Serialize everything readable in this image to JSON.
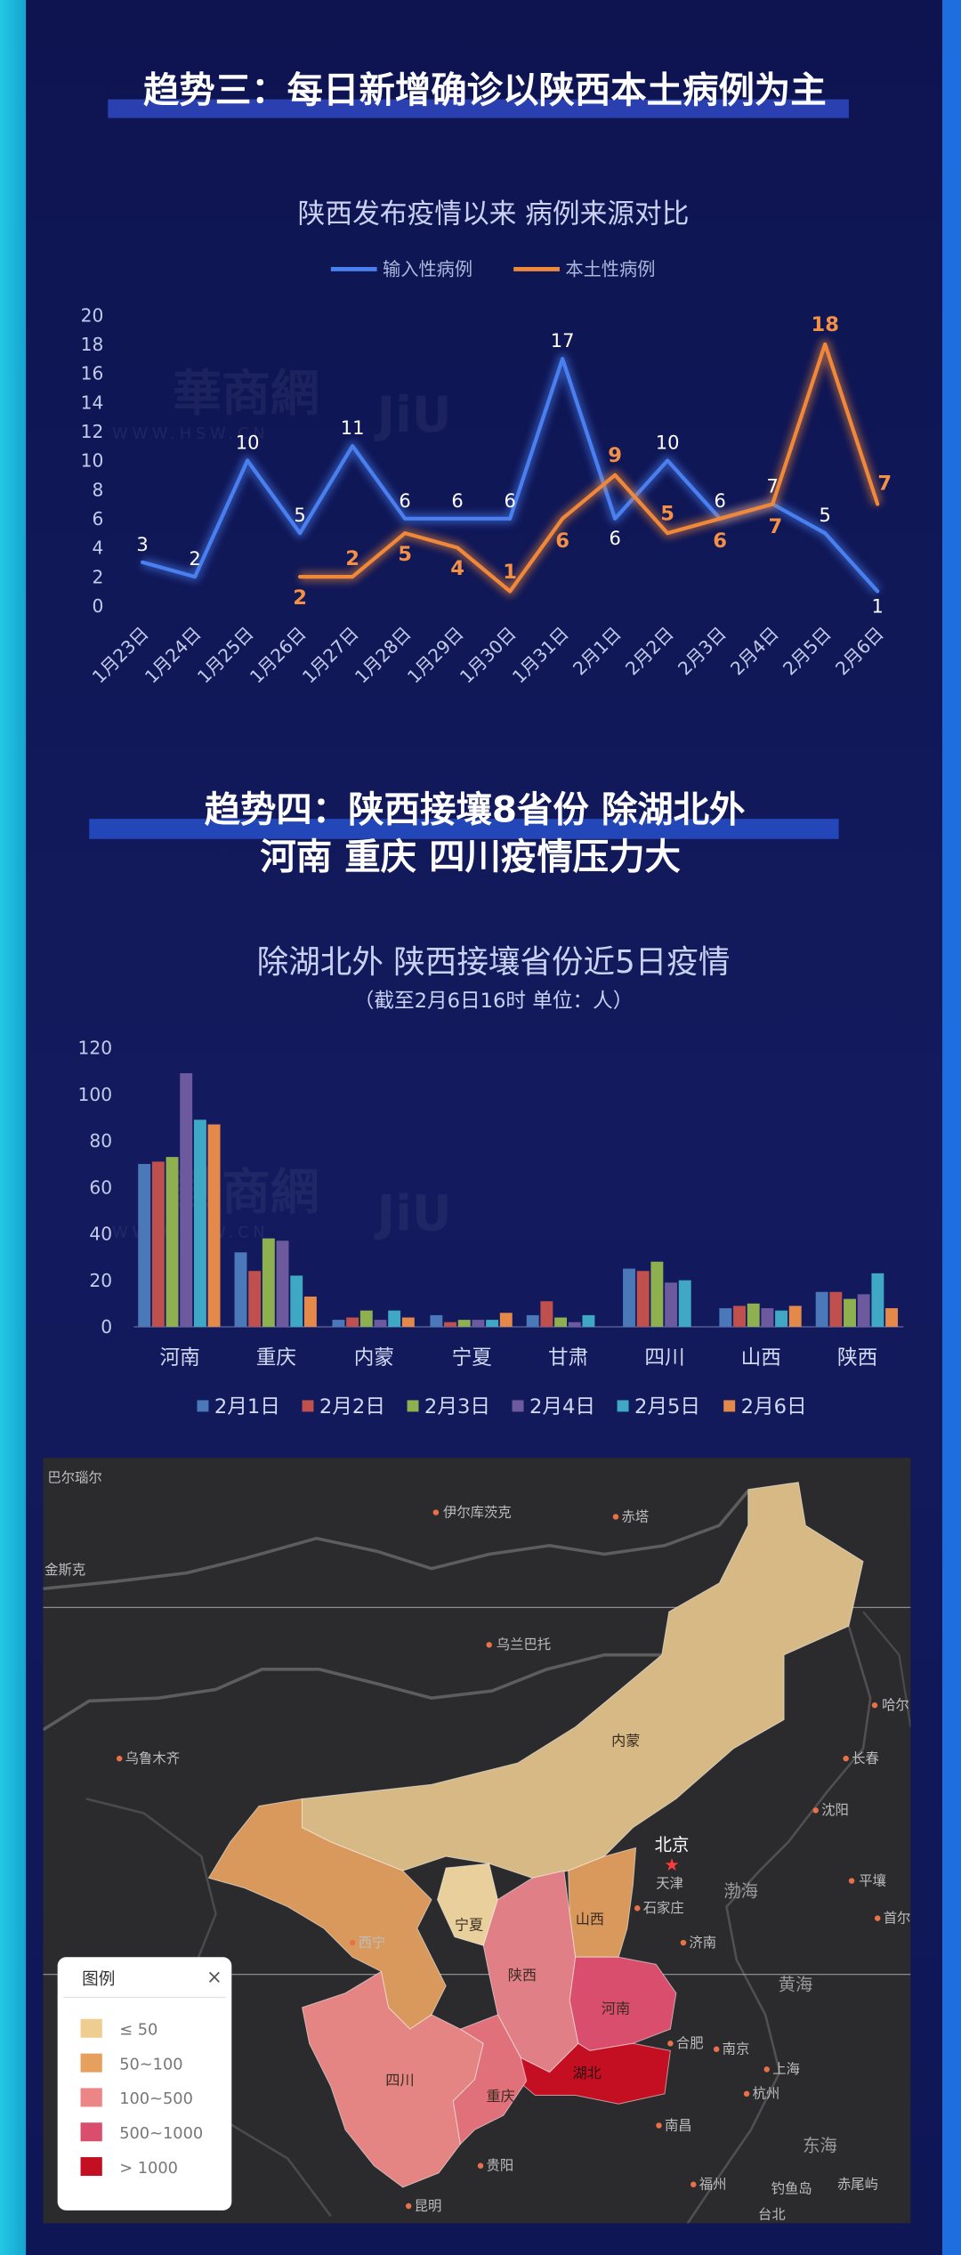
{
  "section3": {
    "title": "趋势三：每日新增确诊以陕西本土病例为主"
  },
  "section4": {
    "title_line1": "趋势四：陕西接壤8省份 除湖北外",
    "title_line2": "河南 重庆 四川疫情压力大"
  },
  "watermark": {
    "logo": "華商網",
    "url": "WWW.HSW.CN",
    "brand": "JiU"
  },
  "chart_data": [
    {
      "type": "line",
      "title": "陕西发布疫情以来 病例来源对比",
      "xlabel": "",
      "ylabel": "",
      "categories": [
        "1月23日",
        "1月24日",
        "1月25日",
        "1月26日",
        "1月27日",
        "1月28日",
        "1月29日",
        "1月30日",
        "1月31日",
        "2月1日",
        "2月2日",
        "2月3日",
        "2月4日",
        "2月5日",
        "2月6日"
      ],
      "series": [
        {
          "name": "输入性病例",
          "color": "#4a7ff0",
          "values": [
            3,
            2,
            10,
            5,
            11,
            6,
            6,
            6,
            17,
            6,
            10,
            6,
            7,
            5,
            1
          ]
        },
        {
          "name": "本土性病例",
          "color": "#f0883a",
          "values": [
            null,
            null,
            null,
            2,
            2,
            5,
            4,
            1,
            6,
            9,
            5,
            6,
            7,
            18,
            7
          ]
        }
      ],
      "ylim": [
        0,
        20
      ],
      "yticks": [
        0,
        2,
        4,
        6,
        8,
        10,
        12,
        14,
        16,
        18,
        20
      ],
      "grid": false,
      "legend": "top-center"
    },
    {
      "type": "bar",
      "title": "除湖北外 陕西接壤省份近5日疫情",
      "subtitle": "（截至2月6日16时  单位：人）",
      "xlabel": "",
      "ylabel": "",
      "categories": [
        "河南",
        "重庆",
        "内蒙",
        "宁夏",
        "甘肃",
        "四川",
        "山西",
        "陕西"
      ],
      "series": [
        {
          "name": "2月1日",
          "color": "#4a78b8",
          "values": [
            70,
            32,
            3,
            5,
            5,
            25,
            8,
            15
          ]
        },
        {
          "name": "2月2日",
          "color": "#c0504d",
          "values": [
            71,
            24,
            4,
            2,
            11,
            24,
            9,
            15
          ]
        },
        {
          "name": "2月3日",
          "color": "#8eb04e",
          "values": [
            73,
            38,
            7,
            3,
            4,
            28,
            10,
            12
          ]
        },
        {
          "name": "2月4日",
          "color": "#6d5a9e",
          "values": [
            109,
            37,
            3,
            3,
            2,
            19,
            8,
            14
          ]
        },
        {
          "name": "2月5日",
          "color": "#3fa8c4",
          "values": [
            89,
            22,
            7,
            3,
            5,
            20,
            7,
            23
          ]
        },
        {
          "name": "2月6日",
          "color": "#e5894a",
          "values": [
            87,
            13,
            4,
            6,
            0,
            0,
            9,
            8
          ]
        }
      ],
      "ylim": [
        0,
        120
      ],
      "yticks": [
        0,
        20,
        40,
        60,
        80,
        100,
        120
      ],
      "grid": false,
      "legend": "bottom"
    }
  ],
  "map": {
    "labels": [
      "巴尔瑙尔",
      "伊尔库茨克",
      "赤塔",
      "金斯克",
      "乌兰巴托",
      "乌鲁木齐",
      "内蒙",
      "哈尔",
      "长春",
      "沈阳",
      "北京",
      "天津",
      "渤海",
      "平壤",
      "首尔",
      "石家庄",
      "济南",
      "山西",
      "宁夏",
      "西宁",
      "陕西",
      "河南",
      "黄海",
      "合肥",
      "南京",
      "上海",
      "杭州",
      "湖北",
      "四川",
      "重庆",
      "南昌",
      "贵阳",
      "福州",
      "东海",
      "钓鱼岛",
      "赤尾屿",
      "台北",
      "昆明"
    ],
    "legend": {
      "title": "图例",
      "close": "×",
      "items": [
        {
          "label": "≤ 50",
          "color": "#efcd90"
        },
        {
          "label": "50~100",
          "color": "#e4a05c"
        },
        {
          "label": "100~500",
          "color": "#ec8585"
        },
        {
          "label": "500~1000",
          "color": "#d84e6c"
        },
        {
          "label": "> 1000",
          "color": "#c40e22"
        }
      ]
    }
  }
}
